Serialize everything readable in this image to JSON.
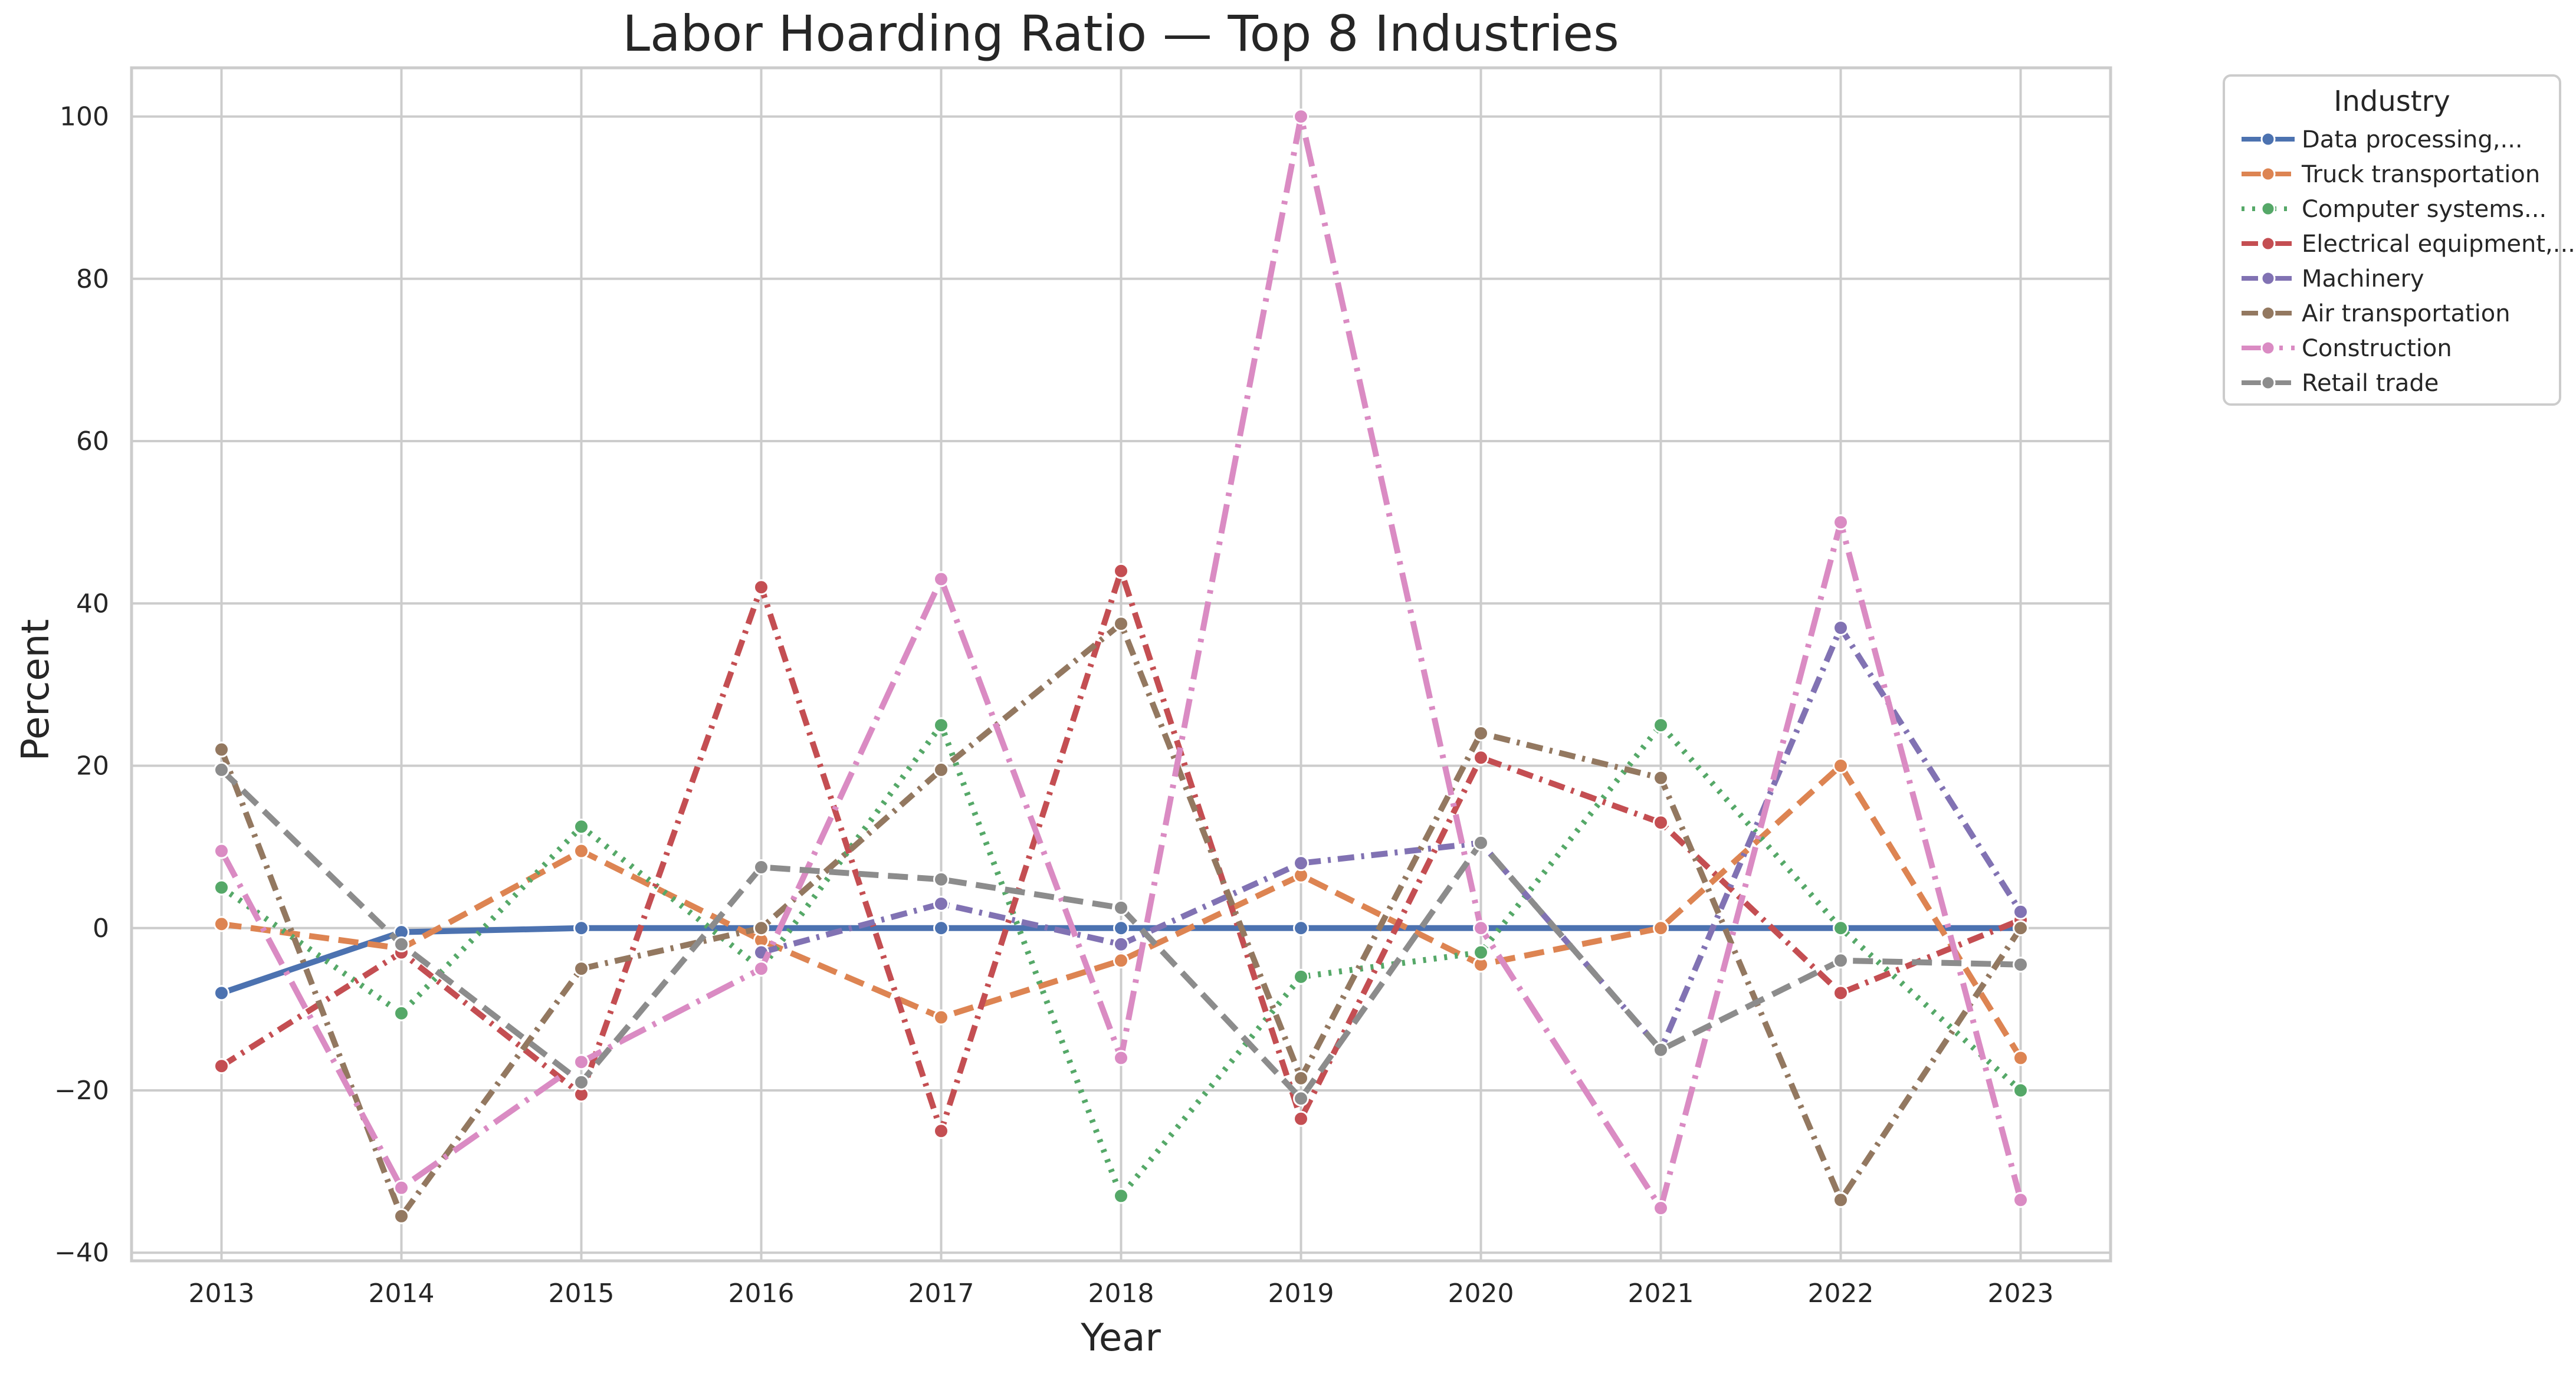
{
  "chart_data": {
    "type": "line",
    "title": "Labor Hoarding Ratio — Top 8 Industries",
    "xlabel": "Year",
    "ylabel": "Percent",
    "x": [
      "2013",
      "2014",
      "2015",
      "2016",
      "2017",
      "2018",
      "2019",
      "2020",
      "2021",
      "2022",
      "2023"
    ],
    "xlim": [
      2012.5,
      2023.5
    ],
    "ylim": [
      -41,
      106
    ],
    "yticks": [
      -40,
      -20,
      0,
      20,
      40,
      60,
      80,
      100
    ],
    "ytick_labels": [
      "−40",
      "−20",
      "0",
      "20",
      "40",
      "60",
      "80",
      "100"
    ],
    "grid": true,
    "legend": {
      "title": "Industry",
      "placement": "outside-top-right"
    },
    "series": [
      {
        "name": "Data processing,...",
        "color": "#4c72b0",
        "dash": "solid",
        "values": [
          -8,
          -0.5,
          0,
          0,
          0,
          0,
          0,
          0,
          0,
          0,
          0
        ]
      },
      {
        "name": "Truck transportation",
        "color": "#dd8452",
        "dash": "dashed",
        "values": [
          0.5,
          -2.5,
          9.5,
          -1.5,
          -11,
          -4,
          6.5,
          -4.5,
          0,
          20,
          -16
        ]
      },
      {
        "name": "Computer systems...",
        "color": "#55a868",
        "dash": "dotted",
        "values": [
          5,
          -10.5,
          12.5,
          -5,
          25,
          -33,
          -6,
          -3,
          25,
          0,
          -20
        ]
      },
      {
        "name": "Electrical equipment,...",
        "color": "#c44e52",
        "dash": "dashdot",
        "values": [
          -17,
          -3,
          -20.5,
          42,
          -25,
          44,
          -23.5,
          21,
          13,
          -8,
          1
        ]
      },
      {
        "name": "Machinery",
        "color": "#8172b3",
        "dash": "dashdot",
        "values": [
          null,
          null,
          null,
          -3,
          3,
          -2,
          8,
          10.5,
          -15,
          37,
          2
        ]
      },
      {
        "name": "Air transportation",
        "color": "#937860",
        "dash": "dashdot",
        "values": [
          22,
          -35.5,
          -5,
          0,
          19.5,
          37.5,
          -18.5,
          24,
          18.5,
          -33.5,
          0
        ]
      },
      {
        "name": "Construction",
        "color": "#da8bc3",
        "dash": "dashdotlong",
        "values": [
          9.5,
          -32,
          -16.5,
          -5,
          43,
          -16,
          100,
          0,
          -34.5,
          50,
          -33.5
        ]
      },
      {
        "name": "Retail trade",
        "color": "#8c8c8c",
        "dash": "dashed",
        "values": [
          19.5,
          -2,
          -19,
          7.5,
          6,
          2.5,
          -21,
          10.5,
          -15,
          -4,
          -4.5
        ]
      }
    ]
  }
}
